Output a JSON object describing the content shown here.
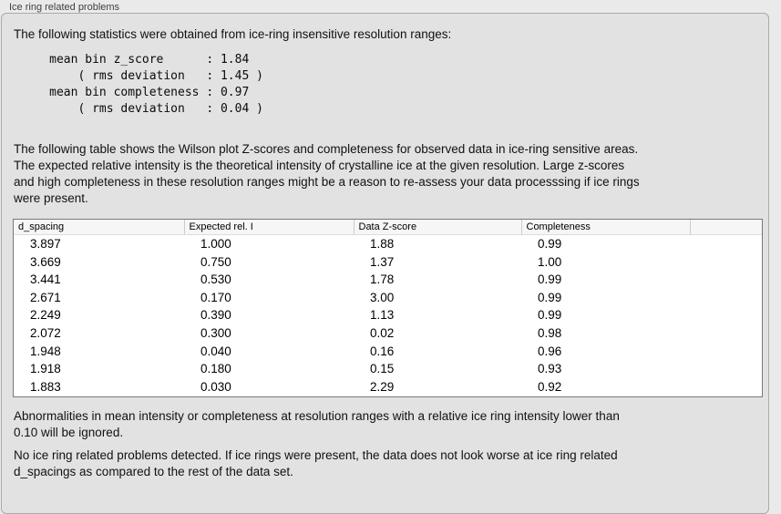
{
  "panel": {
    "title": "Ice ring related problems"
  },
  "intro": {
    "text": "The following statistics were obtained from ice-ring insensitive resolution ranges:"
  },
  "stats": {
    "lines": [
      "     mean bin z_score      : 1.84",
      "         ( rms deviation   : 1.45 )",
      "     mean bin completeness : 0.97",
      "         ( rms deviation   : 0.04 )"
    ],
    "values": {
      "mean_bin_z_score": "1.84",
      "z_score_rms_deviation": "1.45",
      "mean_bin_completeness": "0.97",
      "completeness_rms_deviation": "0.04"
    }
  },
  "description": {
    "lines": [
      "The following table shows the Wilson plot Z-scores and completeness for observed data in ice-ring sensitive areas.",
      "The expected relative intensity is the theoretical intensity of crystalline ice at the given resolution. Large z-scores",
      "and high completeness in these resolution ranges might be a reason to re-assess your data processsing if ice rings",
      "were present."
    ]
  },
  "table": {
    "headers": [
      "d_spacing",
      "Expected rel. I",
      "Data Z-score",
      "Completeness"
    ],
    "rows": [
      [
        "3.897",
        "1.000",
        "1.88",
        "0.99"
      ],
      [
        "3.669",
        "0.750",
        "1.37",
        "1.00"
      ],
      [
        "3.441",
        "0.530",
        "1.78",
        "0.99"
      ],
      [
        "2.671",
        "0.170",
        "3.00",
        "0.99"
      ],
      [
        "2.249",
        "0.390",
        "1.13",
        "0.99"
      ],
      [
        "2.072",
        "0.300",
        "0.02",
        "0.98"
      ],
      [
        "1.948",
        "0.040",
        "0.16",
        "0.96"
      ],
      [
        "1.918",
        "0.180",
        "0.15",
        "0.93"
      ],
      [
        "1.883",
        "0.030",
        "2.29",
        "0.92"
      ]
    ]
  },
  "notes": {
    "ignore_lines": [
      "Abnormalities in mean intensity or completeness at resolution ranges with a relative ice ring intensity lower than",
      "0.10 will be ignored."
    ],
    "conclusion_lines": [
      "No ice ring related problems detected. If ice rings were present, the data does not look worse at ice ring related",
      "d_spacings as compared to the rest of the data set."
    ]
  },
  "colors": {
    "page_background": "#eaeaea",
    "panel_background": "#e2e2e2",
    "panel_border": "#aaaaaa",
    "table_border": "#787878",
    "table_header_background": "#f6f6f6",
    "table_body_background": "#ffffff",
    "text": "#111111"
  }
}
